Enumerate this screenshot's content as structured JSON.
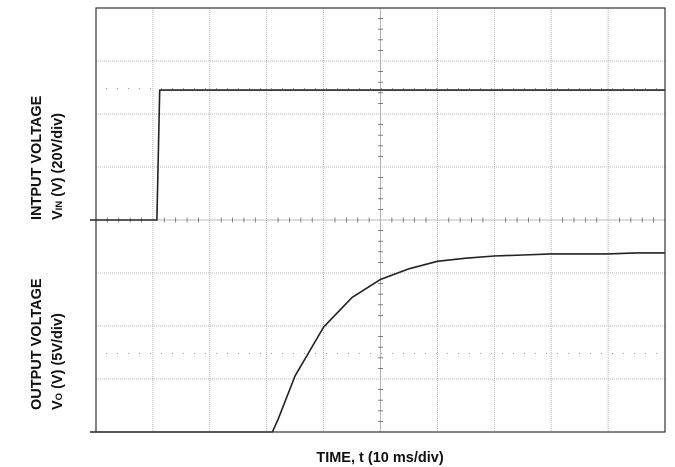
{
  "chart_data": [
    {
      "type": "line",
      "panel": "top",
      "ylabel_line1": "INTPUT VOLTAGE",
      "ylabel_sym": "V",
      "ylabel_sub": "IN",
      "ylabel_rest": " (V) (20V/div)",
      "xlabel": "",
      "xlim": [
        0,
        100
      ],
      "ylim": [
        0,
        80
      ],
      "grid": true,
      "series": [
        {
          "x": [
            0,
            10.7,
            11.2,
            100
          ],
          "y": [
            0,
            0,
            49,
            49
          ]
        }
      ]
    },
    {
      "type": "line",
      "panel": "bottom",
      "ylabel_line1": "OUTPUT VOLTAGE",
      "ylabel_sym": "V",
      "ylabel_sub": "O",
      "ylabel_rest": " (V) (5V/div)",
      "xlabel": "TIME, t (10 ms/div)",
      "xlim": [
        0,
        100
      ],
      "ylim": [
        0,
        20
      ],
      "grid": true,
      "series": [
        {
          "x": [
            0,
            31,
            32,
            35,
            40,
            45,
            50,
            55,
            60,
            65,
            70,
            75,
            80,
            85,
            90,
            95,
            100
          ],
          "y": [
            0,
            0,
            1.2,
            5.3,
            9.9,
            12.7,
            14.4,
            15.4,
            16.1,
            16.4,
            16.6,
            16.7,
            16.8,
            16.8,
            16.8,
            16.9,
            16.9
          ]
        }
      ]
    }
  ],
  "colors": {
    "trace": "#222222",
    "grid": "#a0a0a0",
    "frame": "#333333",
    "text": "#111111"
  }
}
